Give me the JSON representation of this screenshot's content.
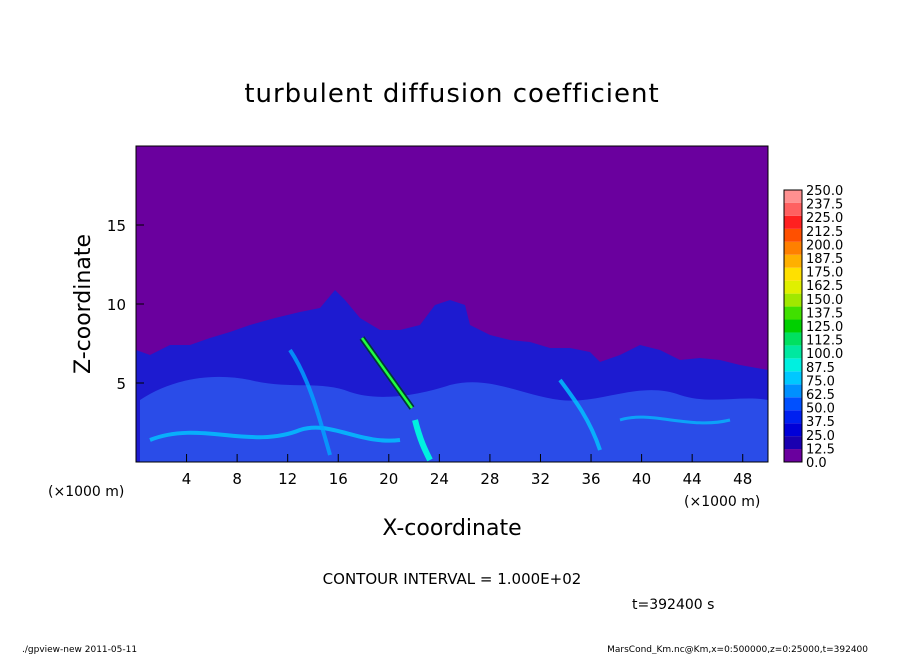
{
  "chart_data": {
    "type": "heatmap",
    "title": "turbulent diffusion coefficient",
    "xlabel": "X-coordinate",
    "ylabel": "Z-coordinate",
    "x_unit": "(×1000 m)",
    "y_unit": "(×1000 m)",
    "xlim": [
      0,
      50
    ],
    "ylim": [
      0,
      20
    ],
    "x_ticks": [
      4,
      8,
      12,
      16,
      20,
      24,
      28,
      32,
      36,
      40,
      44,
      48
    ],
    "y_ticks": [
      5,
      10,
      15
    ],
    "colorbar_levels": [
      "0.0",
      "12.5",
      "25.0",
      "37.5",
      "50.0",
      "62.5",
      "75.0",
      "87.5",
      "100.0",
      "112.5",
      "125.0",
      "137.5",
      "150.0",
      "162.5",
      "175.0",
      "187.5",
      "200.0",
      "212.5",
      "225.0",
      "237.5",
      "250.0"
    ],
    "colorbar_colors": [
      "#6a009e",
      "#1a00b0",
      "#0000d8",
      "#0020f0",
      "#0050ff",
      "#0090ff",
      "#00c8ff",
      "#00f0e0",
      "#00e8a0",
      "#00e060",
      "#00d000",
      "#40e000",
      "#a0e800",
      "#e0f000",
      "#ffe000",
      "#ffb000",
      "#ff8000",
      "#ff5000",
      "#ff2020",
      "#ff6060",
      "#ff9090"
    ],
    "background_color": "#6a009e",
    "contour_interval": "CONTOUR INTERVAL = 1.000E+02",
    "time_label": "t=392400 s"
  },
  "footer": {
    "left": "./gpview-new  2011-05-11",
    "right": "MarsCond_Km.nc@Km,x=0:500000,z=0:25000,t=392400"
  }
}
